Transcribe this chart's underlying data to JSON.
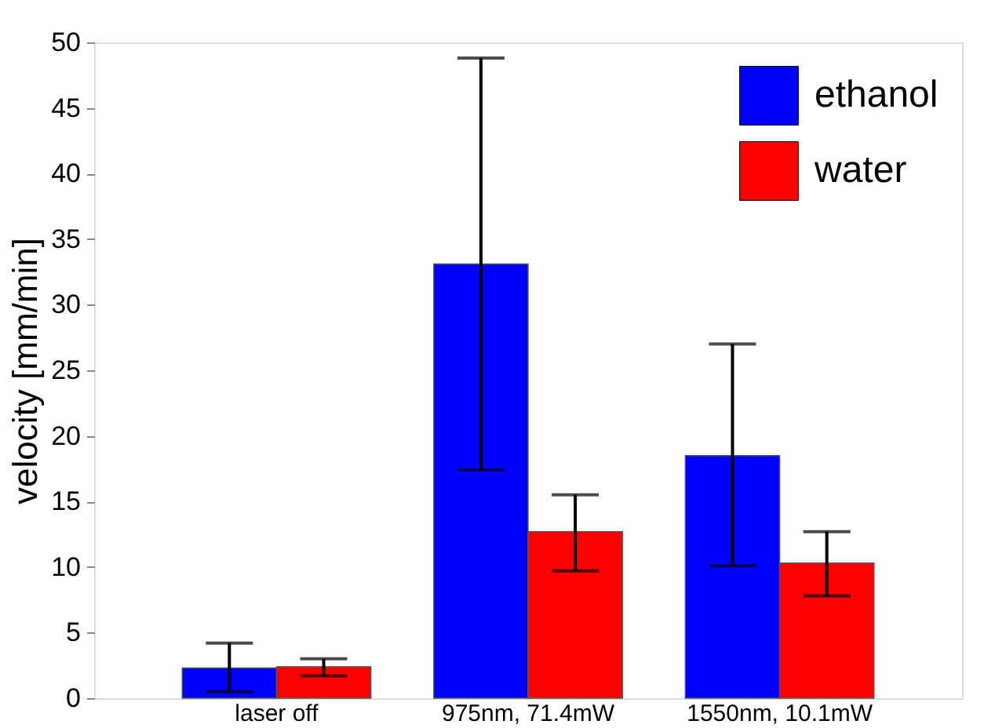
{
  "chart_data": {
    "type": "bar",
    "ylabel": "velocity [mm/min]",
    "categories": [
      "laser off",
      "975nm, 71.4mW",
      "1550nm, 10.1mW"
    ],
    "series": [
      {
        "name": "ethanol",
        "color": "#0000ff",
        "values": [
          2.3,
          33.1,
          18.5
        ],
        "errors": [
          [
            0.5,
            4.2
          ],
          [
            17.4,
            48.8
          ],
          [
            10.1,
            27.0
          ]
        ]
      },
      {
        "name": "water",
        "color": "#ff0000",
        "values": [
          2.4,
          12.7,
          10.3
        ],
        "errors": [
          [
            1.7,
            3.0
          ],
          [
            9.7,
            15.5
          ],
          [
            7.8,
            12.7
          ]
        ]
      }
    ],
    "ylim": [
      0,
      50
    ],
    "yticks": [
      0,
      5,
      10,
      15,
      20,
      25,
      30,
      35,
      40,
      45,
      50
    ],
    "grid": false,
    "legend": "top right"
  }
}
